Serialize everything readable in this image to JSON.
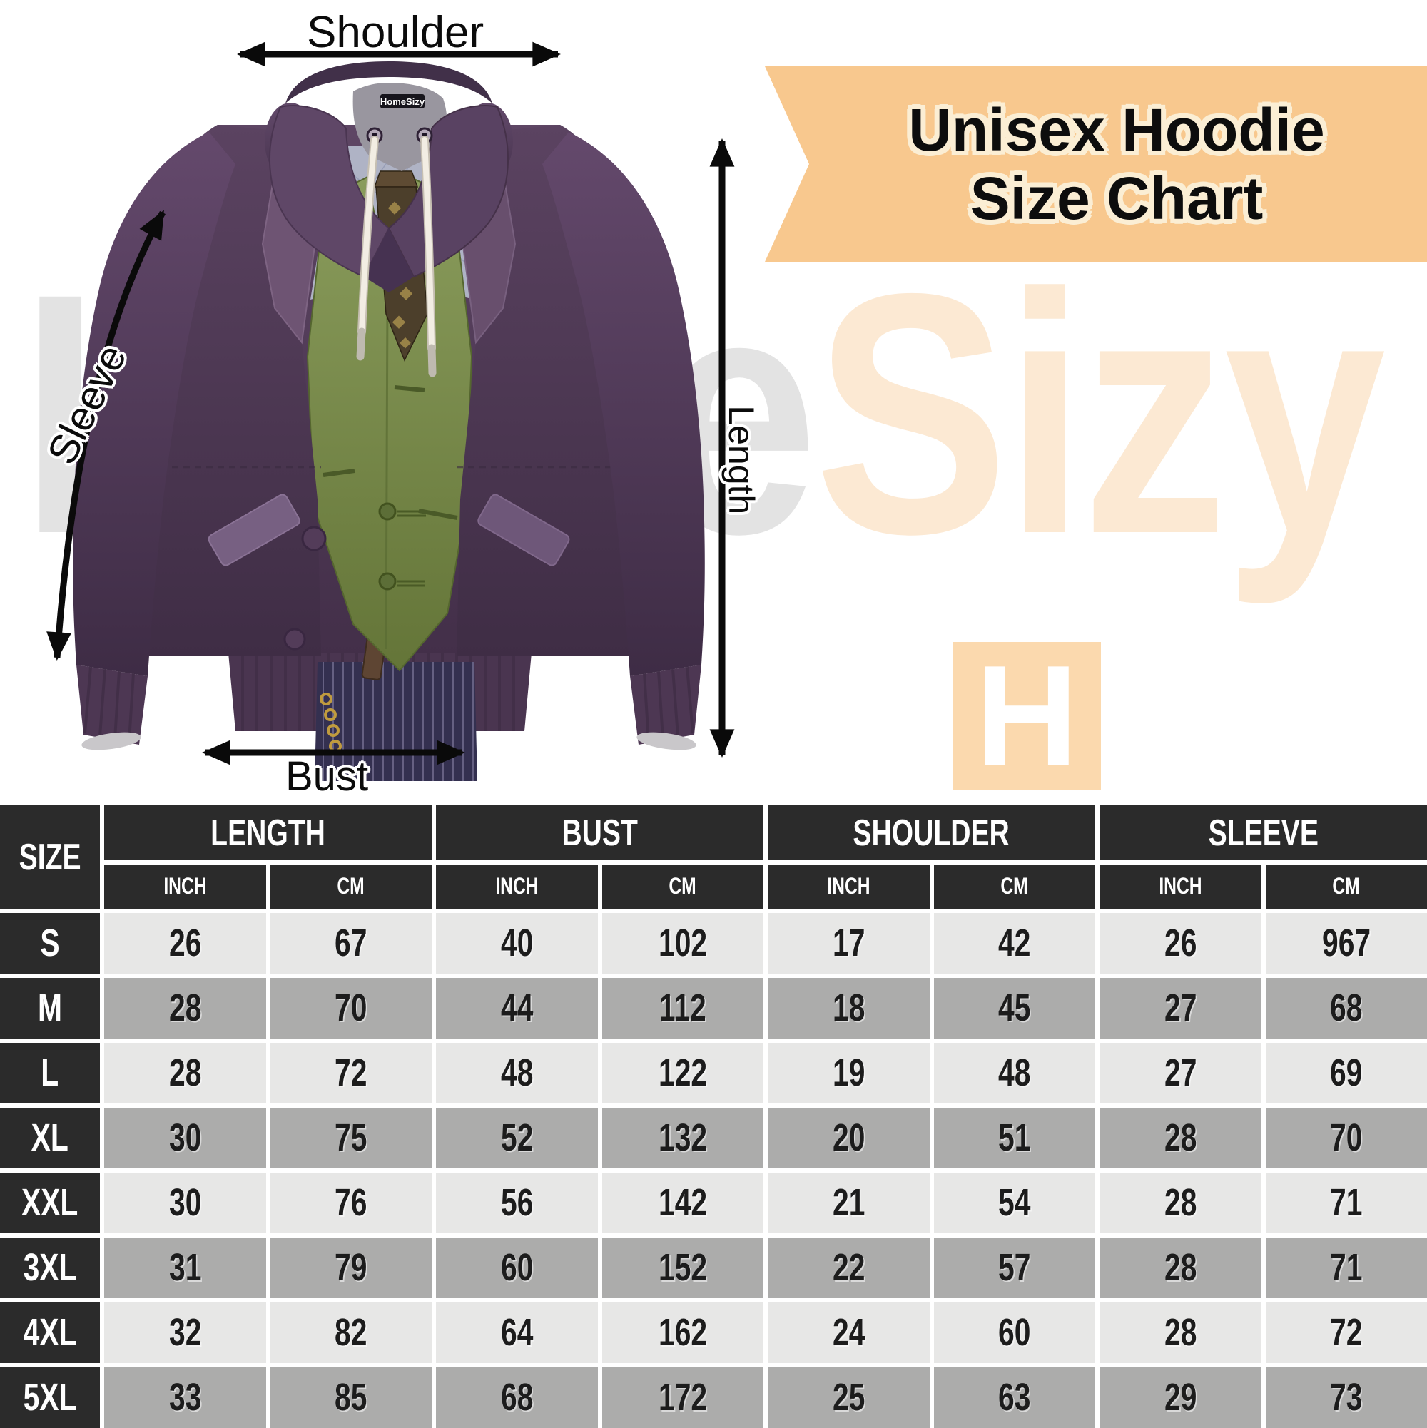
{
  "banner": {
    "line1": "Unisex Hoodie",
    "line2": "Size Chart",
    "bg": "#F8C88E",
    "outline": "#FBEED4"
  },
  "watermark": {
    "left_text": "Home",
    "right_text": "Sizy",
    "left_color": "#E3E3E3",
    "right_color": "#FCE9D3"
  },
  "h_logo": {
    "letter": "H",
    "bg": "#FBD9AE",
    "fg": "#FFFFFF"
  },
  "hoodie": {
    "neck_tag": "HomeSizy"
  },
  "measure_labels": {
    "shoulder": "Shoulder",
    "sleeve": "Sleeve",
    "length": "Length",
    "bust": "Bust"
  },
  "table": {
    "size_header": "SIZE",
    "groups": [
      "LENGTH",
      "BUST",
      "SHOULDER",
      "SLEEVE"
    ],
    "units": [
      "INCH",
      "CM"
    ],
    "rows": [
      {
        "size": "S",
        "values": [
          26,
          67,
          40,
          102,
          17,
          42,
          26,
          967
        ]
      },
      {
        "size": "M",
        "values": [
          28,
          70,
          44,
          112,
          18,
          45,
          27,
          68
        ]
      },
      {
        "size": "L",
        "values": [
          28,
          72,
          48,
          122,
          19,
          48,
          27,
          69
        ]
      },
      {
        "size": "XL",
        "values": [
          30,
          75,
          52,
          132,
          20,
          51,
          28,
          70
        ]
      },
      {
        "size": "XXL",
        "values": [
          30,
          76,
          56,
          142,
          21,
          54,
          28,
          71
        ]
      },
      {
        "size": "3XL",
        "values": [
          31,
          79,
          60,
          152,
          22,
          57,
          28,
          71
        ]
      },
      {
        "size": "4XL",
        "values": [
          32,
          82,
          64,
          162,
          24,
          60,
          28,
          72
        ]
      },
      {
        "size": "5XL",
        "values": [
          33,
          85,
          68,
          172,
          25,
          63,
          29,
          73
        ]
      }
    ],
    "colors": {
      "header_bg": "#2B2B2B",
      "row_light": "#E7E7E6",
      "row_dark": "#ACACAB",
      "value_text": "#1C1C1C"
    }
  },
  "chart_data": {
    "type": "table",
    "title": "Unisex Hoodie Size Chart",
    "columns": [
      "SIZE",
      "LENGTH INCH",
      "LENGTH CM",
      "BUST INCH",
      "BUST CM",
      "SHOULDER INCH",
      "SHOULDER CM",
      "SLEEVE INCH",
      "SLEEVE CM"
    ],
    "rows": [
      [
        "S",
        26,
        67,
        40,
        102,
        17,
        42,
        26,
        967
      ],
      [
        "M",
        28,
        70,
        44,
        112,
        18,
        45,
        27,
        68
      ],
      [
        "L",
        28,
        72,
        48,
        122,
        19,
        48,
        27,
        69
      ],
      [
        "XL",
        30,
        75,
        52,
        132,
        20,
        51,
        28,
        70
      ],
      [
        "XXL",
        30,
        76,
        56,
        142,
        21,
        54,
        28,
        71
      ],
      [
        "3XL",
        31,
        79,
        60,
        152,
        22,
        57,
        28,
        71
      ],
      [
        "4XL",
        32,
        82,
        64,
        162,
        24,
        60,
        28,
        72
      ],
      [
        "5XL",
        33,
        85,
        68,
        172,
        25,
        63,
        29,
        73
      ]
    ]
  }
}
